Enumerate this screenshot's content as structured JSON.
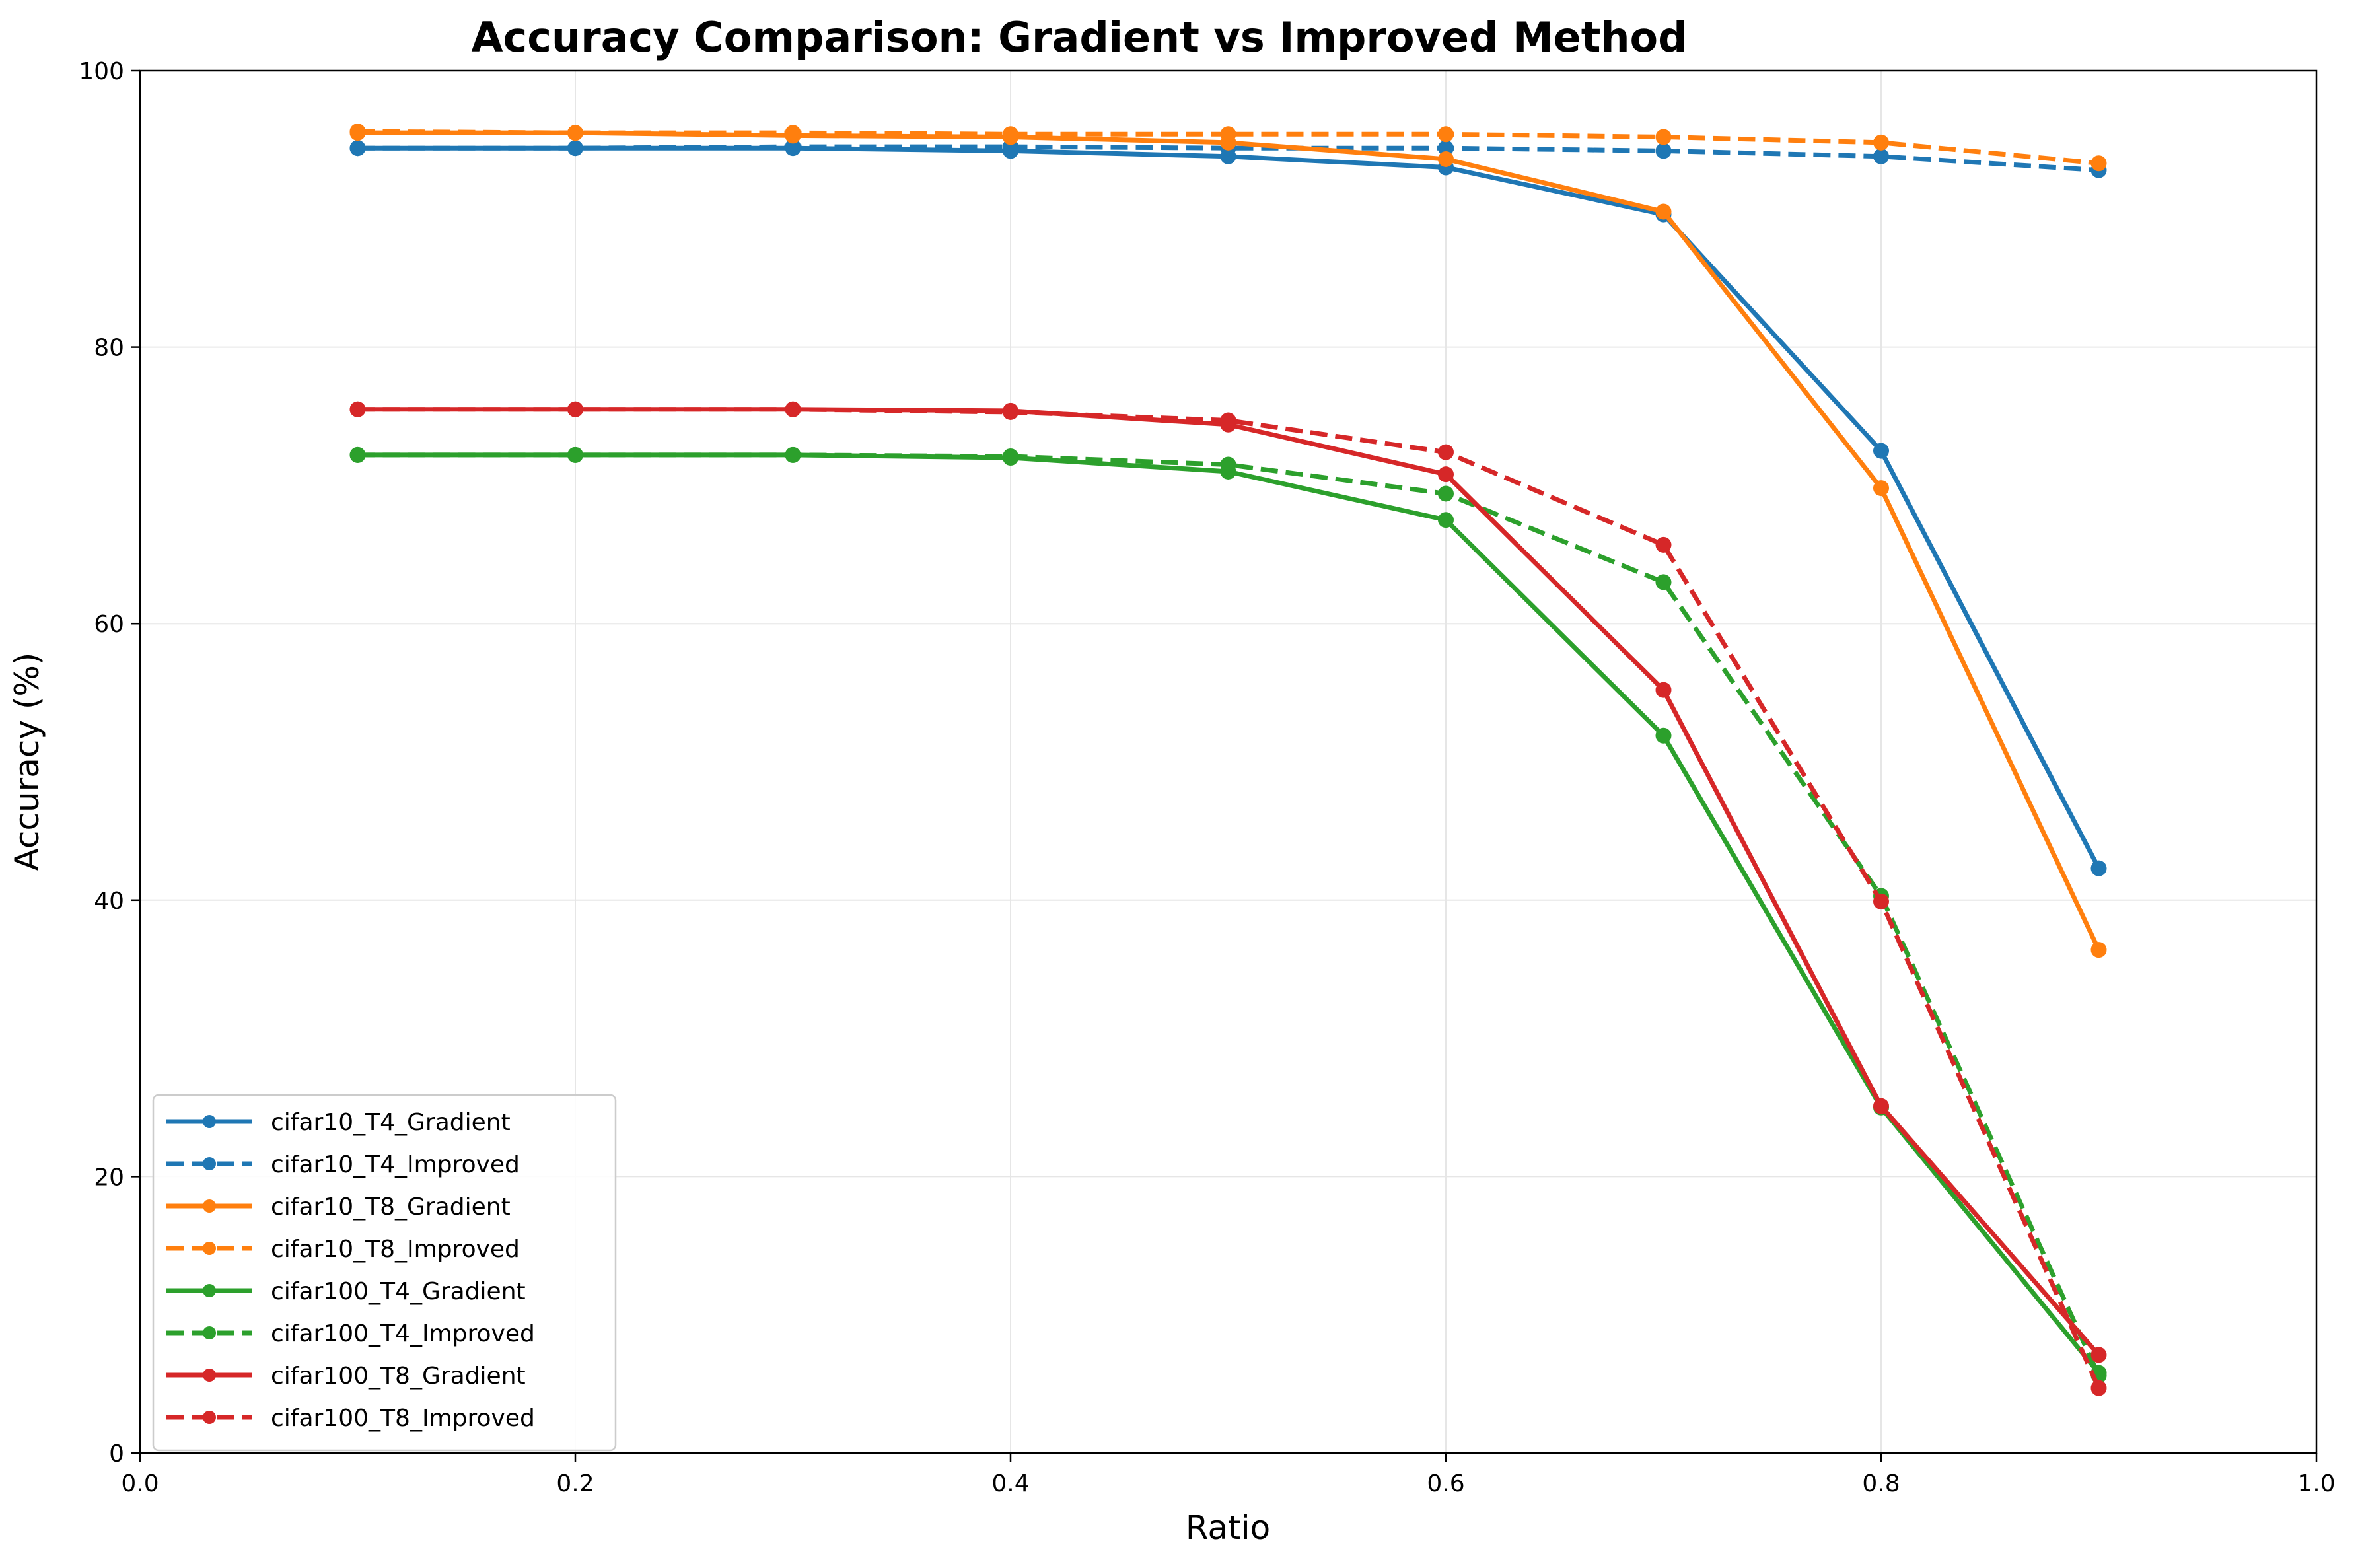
{
  "chart_data": {
    "type": "line",
    "title": "Accuracy Comparison: Gradient vs Improved Method",
    "xlabel": "Ratio",
    "ylabel": "Accuracy (%)",
    "xlim": [
      0.0,
      1.0
    ],
    "ylim": [
      0,
      100
    ],
    "xticks": [
      "0.0",
      "0.2",
      "0.4",
      "0.6",
      "0.8",
      "1.0"
    ],
    "yticks": [
      "0",
      "20",
      "40",
      "60",
      "80",
      "100"
    ],
    "grid": true,
    "legend_position": "lower-left",
    "x": [
      0.1,
      0.2,
      0.3,
      0.4,
      0.5,
      0.6,
      0.7,
      0.8,
      0.9
    ],
    "series": [
      {
        "name": "cifar10_T4_Gradient",
        "color": "#1f77b4",
        "dash": "solid",
        "values": [
          94.4,
          94.4,
          94.4,
          94.2,
          93.8,
          93.0,
          89.6,
          72.5,
          42.3
        ]
      },
      {
        "name": "cifar10_T4_Improved",
        "color": "#1f77b4",
        "dash": "dashed",
        "values": [
          94.4,
          94.4,
          94.5,
          94.5,
          94.4,
          94.4,
          94.2,
          93.8,
          92.8
        ]
      },
      {
        "name": "cifar10_T8_Gradient",
        "color": "#ff7f0e",
        "dash": "solid",
        "values": [
          95.5,
          95.5,
          95.3,
          95.2,
          94.8,
          93.6,
          89.8,
          69.8,
          36.4
        ]
      },
      {
        "name": "cifar10_T8_Improved",
        "color": "#ff7f0e",
        "dash": "dashed",
        "values": [
          95.6,
          95.5,
          95.5,
          95.4,
          95.4,
          95.4,
          95.2,
          94.8,
          93.3
        ]
      },
      {
        "name": "cifar100_T4_Gradient",
        "color": "#2ca02c",
        "dash": "solid",
        "values": [
          72.2,
          72.2,
          72.2,
          72.0,
          71.0,
          67.5,
          51.9,
          25.0,
          5.8
        ]
      },
      {
        "name": "cifar100_T4_Improved",
        "color": "#2ca02c",
        "dash": "dashed",
        "values": [
          72.2,
          72.2,
          72.2,
          72.1,
          71.5,
          69.4,
          63.0,
          40.3,
          5.6
        ]
      },
      {
        "name": "cifar100_T8_Gradient",
        "color": "#d62728",
        "dash": "solid",
        "values": [
          75.5,
          75.5,
          75.5,
          75.4,
          74.4,
          70.8,
          55.2,
          25.1,
          7.1
        ]
      },
      {
        "name": "cifar100_T8_Improved",
        "color": "#d62728",
        "dash": "dashed",
        "values": [
          75.5,
          75.5,
          75.5,
          75.3,
          74.7,
          72.4,
          65.7,
          39.9,
          4.7
        ]
      }
    ]
  }
}
